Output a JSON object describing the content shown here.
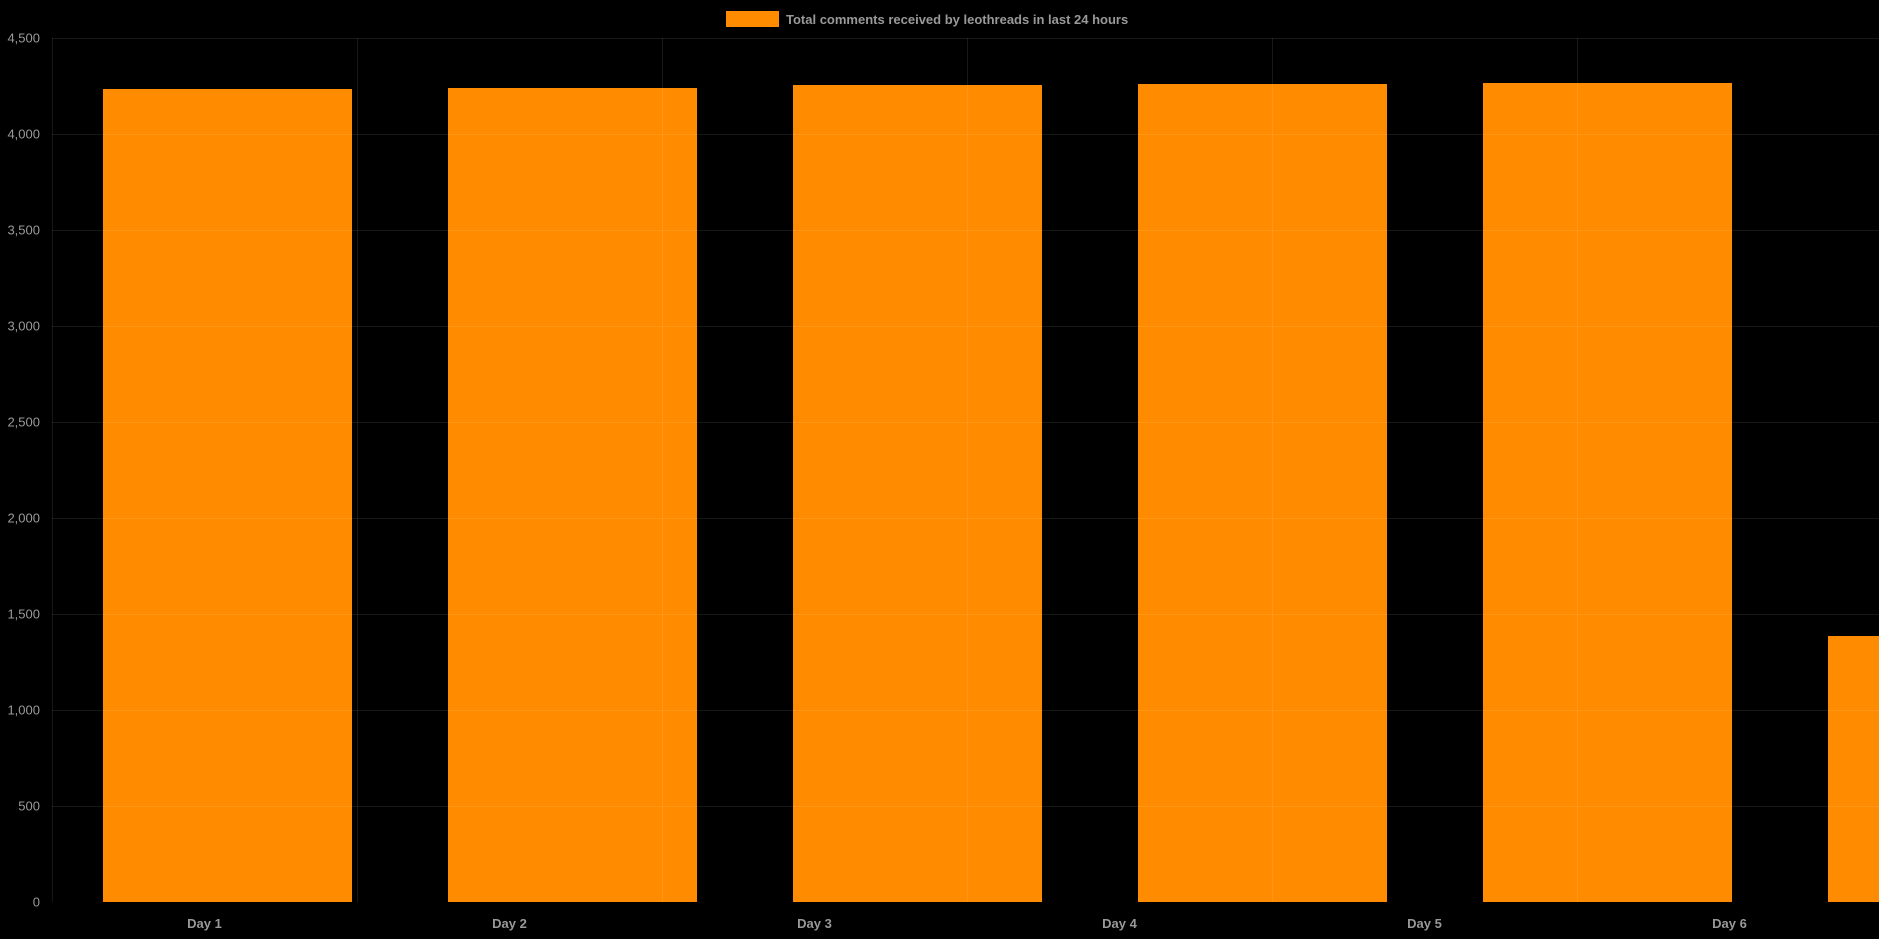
{
  "legend": {
    "label": "Total comments received by leothreads in last 24 hours",
    "swatch_color": "#FF8C00"
  },
  "colors": {
    "background": "#000000",
    "bar": "#FF8C00",
    "axis_text": "#9a9a9a",
    "category_text": "#999999"
  },
  "chart_data": {
    "type": "bar",
    "title": "",
    "xlabel": "",
    "ylabel": "",
    "categories": [
      "Day 1",
      "Day 2",
      "Day 3",
      "Day 4",
      "Day 5",
      "Day 6"
    ],
    "values": [
      4234,
      4240,
      4255,
      4260,
      4266,
      1385
    ],
    "series_name": "Total comments received by leothreads in last 24 hours",
    "ylim": [
      0,
      4500
    ],
    "y_tick_step": 500,
    "y_tick_labels": [
      "4,500",
      "4,000",
      "3,500",
      "3,000",
      "2,500",
      "2,000",
      "1,500",
      "1,000",
      "500",
      "0"
    ],
    "grid": true,
    "legend_position": "top-center",
    "note_last_bar_clipped": "sixth bar extends past right edge of chart"
  }
}
